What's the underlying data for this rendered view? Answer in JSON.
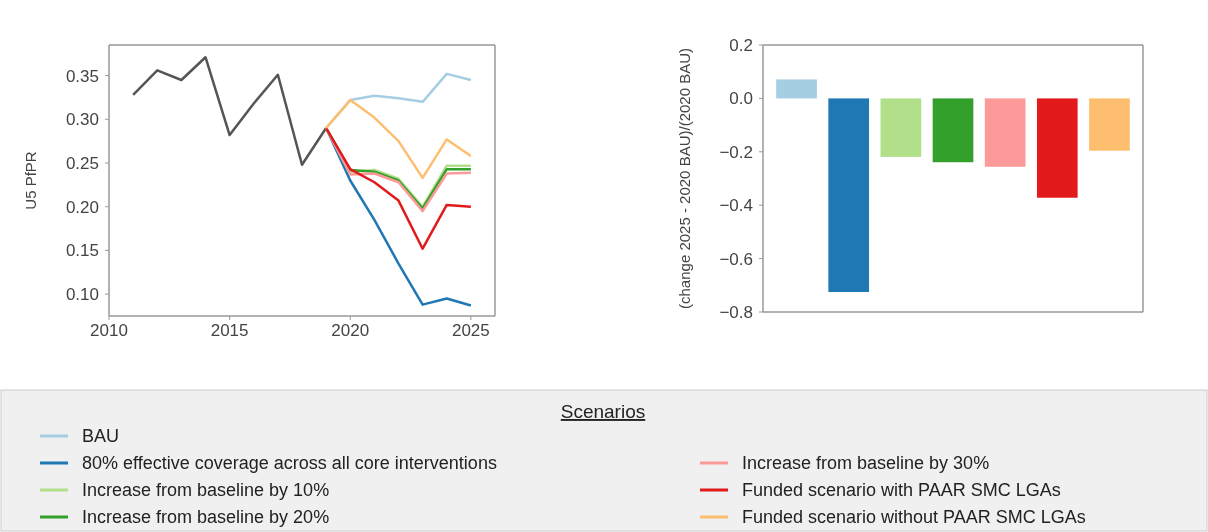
{
  "chart_data": [
    {
      "type": "line",
      "ylabel": "U5 PfPR",
      "xlim": [
        2010,
        2026
      ],
      "xticks": [
        2010,
        2015,
        2020,
        2025
      ],
      "ylim": [
        0.075,
        0.385
      ],
      "yticks": [
        {
          "value": 0.1,
          "label": "0.10"
        },
        {
          "value": 0.15,
          "label": "0.15"
        },
        {
          "value": 0.2,
          "label": "0.20"
        },
        {
          "value": 0.25,
          "label": "0.25"
        },
        {
          "value": 0.3,
          "label": "0.30"
        },
        {
          "value": 0.35,
          "label": "0.35"
        }
      ],
      "grid": false,
      "legend": "bottom",
      "legend_title": "Scenarios",
      "series": [
        {
          "color": "#555555",
          "x": [
            2011,
            2012,
            2013,
            2014,
            2015,
            2016,
            2017,
            2018,
            2019
          ],
          "values": [
            0.328,
            0.356,
            0.345,
            0.371,
            0.282,
            0.318,
            0.351,
            0.248,
            0.29
          ]
        },
        {
          "name": "BAU",
          "color": "#a6cee3",
          "x": [
            2019,
            2020,
            2021,
            2022,
            2023,
            2024,
            2025
          ],
          "values": [
            0.29,
            0.322,
            0.327,
            0.324,
            0.32,
            0.352,
            0.345
          ]
        },
        {
          "name": "80% effective coverage across all core interventions",
          "color": "#1f78b4",
          "x": [
            2019,
            2020,
            2021,
            2022,
            2023,
            2024,
            2025
          ],
          "values": [
            0.29,
            0.23,
            0.185,
            0.135,
            0.088,
            0.095,
            0.087
          ]
        },
        {
          "name": "Increase from baseline by 10%",
          "color": "#b2df8a",
          "x": [
            2019,
            2020,
            2021,
            2022,
            2023,
            2024,
            2025
          ],
          "values": [
            0.29,
            0.24,
            0.242,
            0.232,
            0.2,
            0.247,
            0.247
          ]
        },
        {
          "name": "Increase from baseline by 20%",
          "color": "#33a02c",
          "x": [
            2019,
            2020,
            2021,
            2022,
            2023,
            2024,
            2025
          ],
          "values": [
            0.29,
            0.242,
            0.24,
            0.23,
            0.198,
            0.243,
            0.243
          ]
        },
        {
          "name": "Increase from baseline by 30%",
          "color": "#fb9a99",
          "x": [
            2019,
            2020,
            2021,
            2022,
            2023,
            2024,
            2025
          ],
          "values": [
            0.29,
            0.237,
            0.238,
            0.228,
            0.195,
            0.238,
            0.239
          ]
        },
        {
          "name": "Funded scenario with PAAR SMC LGAs",
          "color": "#e31a1c",
          "x": [
            2019,
            2020,
            2021,
            2022,
            2023,
            2024,
            2025
          ],
          "values": [
            0.29,
            0.243,
            0.228,
            0.207,
            0.152,
            0.202,
            0.2
          ]
        },
        {
          "name": "Funded scenario without PAAR SMC LGAs",
          "color": "#fdbf6f",
          "x": [
            2019,
            2020,
            2021,
            2022,
            2023,
            2024,
            2025
          ],
          "values": [
            0.29,
            0.322,
            0.302,
            0.275,
            0.233,
            0.277,
            0.258
          ]
        }
      ]
    },
    {
      "type": "bar",
      "ylabel": "(change 2025 - 2020 BAU)/(2020 BAU)",
      "categories": [
        null,
        null,
        null,
        null,
        null,
        null,
        null
      ],
      "values": [
        0.071,
        -0.725,
        -0.219,
        -0.239,
        -0.256,
        -0.372,
        -0.196
      ],
      "colors": [
        "#a6cee3",
        "#1f78b4",
        "#b2df8a",
        "#33a02c",
        "#fb9a99",
        "#e31a1c",
        "#fdbf6f"
      ],
      "ylim": [
        -0.8,
        0.2
      ],
      "yticks": [
        {
          "value": 0.2,
          "label": "0.2"
        },
        {
          "value": 0,
          "label": "0.0"
        },
        {
          "value": -0.2,
          "label": "−0.2"
        },
        {
          "value": -0.4,
          "label": "−0.4"
        },
        {
          "value": -0.6,
          "label": "−0.6"
        },
        {
          "value": -0.8,
          "label": "−0.8"
        }
      ],
      "grid": false
    }
  ]
}
